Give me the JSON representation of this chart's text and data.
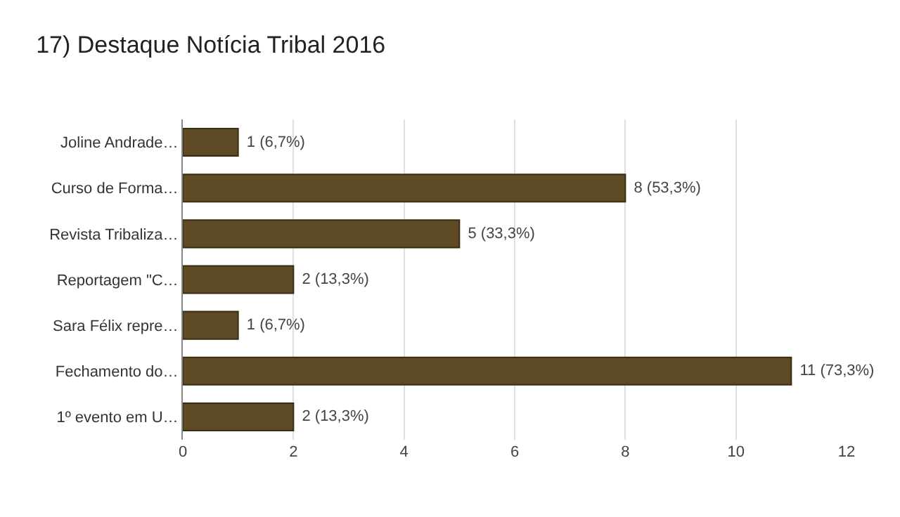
{
  "chart_data": {
    "type": "bar",
    "orientation": "horizontal",
    "title": "17) Destaque Notícia Tribal 2016",
    "categories": [
      "Joline Andrade…",
      "Curso de Forma…",
      "Revista Tribaliza…",
      "Reportagem \"C…",
      "Sara Félix repre…",
      "Fechamento do…",
      "1º evento em U…"
    ],
    "values": [
      1,
      8,
      5,
      2,
      1,
      11,
      2
    ],
    "value_labels": [
      "1 (6,7%)",
      "8 (53,3%)",
      "5 (33,3%)",
      "2 (13,3%)",
      "1 (6,7%)",
      "11 (73,3%)",
      "2 (13,3%)"
    ],
    "color": "#5e4a24",
    "xlim": [
      0,
      12
    ],
    "xticks": [
      0,
      2,
      4,
      6,
      8,
      10,
      12
    ],
    "grid": "x"
  }
}
